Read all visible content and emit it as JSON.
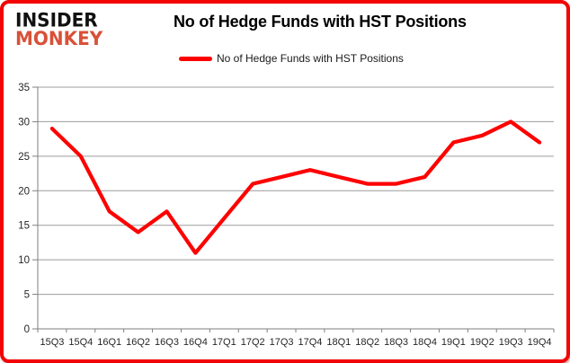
{
  "header": {
    "logo_line1": "INSIDER",
    "logo_line2": "MONKEY",
    "title": "No of Hedge Funds with HST Positions"
  },
  "legend": {
    "label": "No of Hedge Funds with HST Positions"
  },
  "chart_data": {
    "type": "line",
    "title": "No of Hedge Funds with HST Positions",
    "categories": [
      "15Q3",
      "15Q4",
      "16Q1",
      "16Q2",
      "16Q3",
      "16Q4",
      "17Q1",
      "17Q2",
      "17Q3",
      "17Q4",
      "18Q1",
      "18Q2",
      "18Q3",
      "18Q4",
      "19Q1",
      "19Q2",
      "19Q3",
      "19Q4"
    ],
    "series": [
      {
        "name": "No of Hedge Funds with HST Positions",
        "values": [
          29,
          25,
          17,
          14,
          17,
          11,
          16,
          21,
          22,
          23,
          22,
          21,
          21,
          22,
          27,
          28,
          30,
          27
        ],
        "color": "#fe0000"
      }
    ],
    "xlabel": "",
    "ylabel": "",
    "ylim": [
      0,
      35
    ],
    "yticks": [
      0,
      5,
      10,
      15,
      20,
      25,
      30,
      35
    ],
    "grid": true,
    "legend_position": "top"
  },
  "colors": {
    "series_red": "#fe0000",
    "border_red": "#f20404",
    "logo_red": "#d85138",
    "gridline": "#9c9c9c",
    "axis": "#7f7f7f",
    "axis_text": "#262626",
    "title_text": "#000000"
  }
}
